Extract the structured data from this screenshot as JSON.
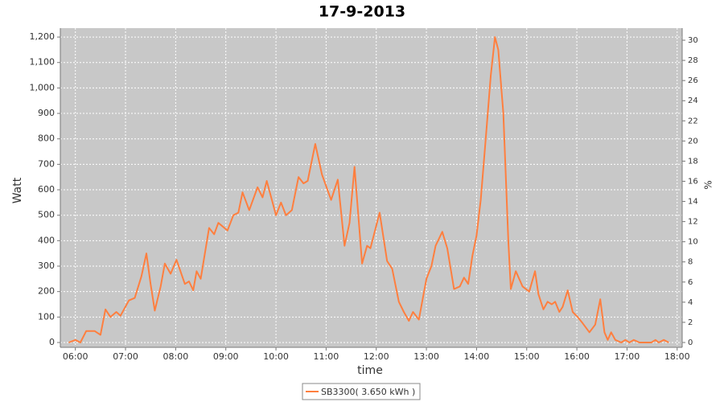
{
  "chart_data": {
    "type": "line",
    "title": "17-9-2013",
    "xlabel": "time",
    "ylabel": "Watt",
    "y2label": "%",
    "x": [
      "05:52",
      "06:00",
      "06:06",
      "06:13",
      "06:23",
      "06:30",
      "06:36",
      "06:42",
      "06:49",
      "06:54",
      "07:04",
      "07:11",
      "07:19",
      "07:25",
      "07:30",
      "07:35",
      "07:42",
      "07:47",
      "07:54",
      "08:01",
      "08:11",
      "08:16",
      "08:21",
      "08:25",
      "08:30",
      "08:40",
      "08:46",
      "08:51",
      "09:02",
      "09:09",
      "09:15",
      "09:20",
      "09:28",
      "09:38",
      "09:44",
      "09:49",
      "10:00",
      "10:06",
      "10:12",
      "10:19",
      "10:27",
      "10:33",
      "10:38",
      "10:47",
      "10:55",
      "11:06",
      "11:14",
      "11:22",
      "11:28",
      "11:34",
      "11:43",
      "11:49",
      "11:53",
      "12:04",
      "12:13",
      "12:19",
      "12:27",
      "12:33",
      "12:39",
      "12:44",
      "12:51",
      "13:00",
      "13:06",
      "13:11",
      "13:19",
      "13:25",
      "13:33",
      "13:40",
      "13:45",
      "13:50",
      "13:55",
      "14:00",
      "14:05",
      "14:11",
      "14:17",
      "14:22",
      "14:26",
      "14:32",
      "14:38",
      "14:41",
      "14:47",
      "14:55",
      "15:03",
      "15:10",
      "15:14",
      "15:20",
      "15:25",
      "15:30",
      "15:34",
      "15:39",
      "15:43",
      "15:49",
      "15:55",
      "16:01",
      "16:06",
      "16:15",
      "16:22",
      "16:28",
      "16:33",
      "16:37",
      "16:41",
      "16:46",
      "16:53",
      "16:58",
      "17:03",
      "17:08",
      "17:15",
      "17:29",
      "17:34",
      "17:38",
      "17:44",
      "17:50"
    ],
    "series": [
      {
        "name": "SB3300( 3.650 kWh )",
        "color": "#ff7f3f",
        "values": [
          0,
          10,
          0,
          45,
          45,
          30,
          130,
          100,
          120,
          105,
          165,
          175,
          260,
          350,
          230,
          125,
          220,
          310,
          270,
          325,
          230,
          240,
          205,
          280,
          250,
          450,
          425,
          470,
          440,
          500,
          510,
          590,
          520,
          610,
          570,
          635,
          500,
          550,
          500,
          520,
          650,
          625,
          635,
          780,
          660,
          560,
          640,
          380,
          470,
          690,
          310,
          380,
          370,
          510,
          320,
          290,
          160,
          120,
          85,
          120,
          90,
          250,
          300,
          380,
          435,
          370,
          210,
          220,
          255,
          230,
          340,
          420,
          560,
          800,
          1050,
          1200,
          1150,
          900,
          400,
          210,
          280,
          220,
          200,
          280,
          190,
          130,
          160,
          150,
          160,
          120,
          140,
          205,
          120,
          100,
          80,
          40,
          70,
          170,
          40,
          10,
          40,
          10,
          0,
          10,
          0,
          10,
          0,
          0,
          10,
          0,
          10,
          0
        ]
      }
    ],
    "xlim": [
      "05:42",
      "18:06"
    ],
    "xticks": [
      "06:00",
      "07:00",
      "08:00",
      "09:00",
      "10:00",
      "11:00",
      "12:00",
      "13:00",
      "14:00",
      "15:00",
      "16:00",
      "17:00",
      "18:00"
    ],
    "ylim": [
      -19,
      1235
    ],
    "yticks": [
      0,
      100,
      200,
      300,
      400,
      500,
      600,
      700,
      800,
      900,
      {
        "value": 1000,
        "label": "1,000"
      },
      {
        "value": 1100,
        "label": "1,100"
      },
      {
        "value": 1200,
        "label": "1,200"
      }
    ],
    "y2lim": [
      -0.48,
      31.2
    ],
    "y2ticks": [
      0,
      2,
      4,
      6,
      8,
      10,
      12,
      14,
      16,
      18,
      20,
      22,
      24,
      26,
      28,
      30
    ],
    "grid": true
  }
}
